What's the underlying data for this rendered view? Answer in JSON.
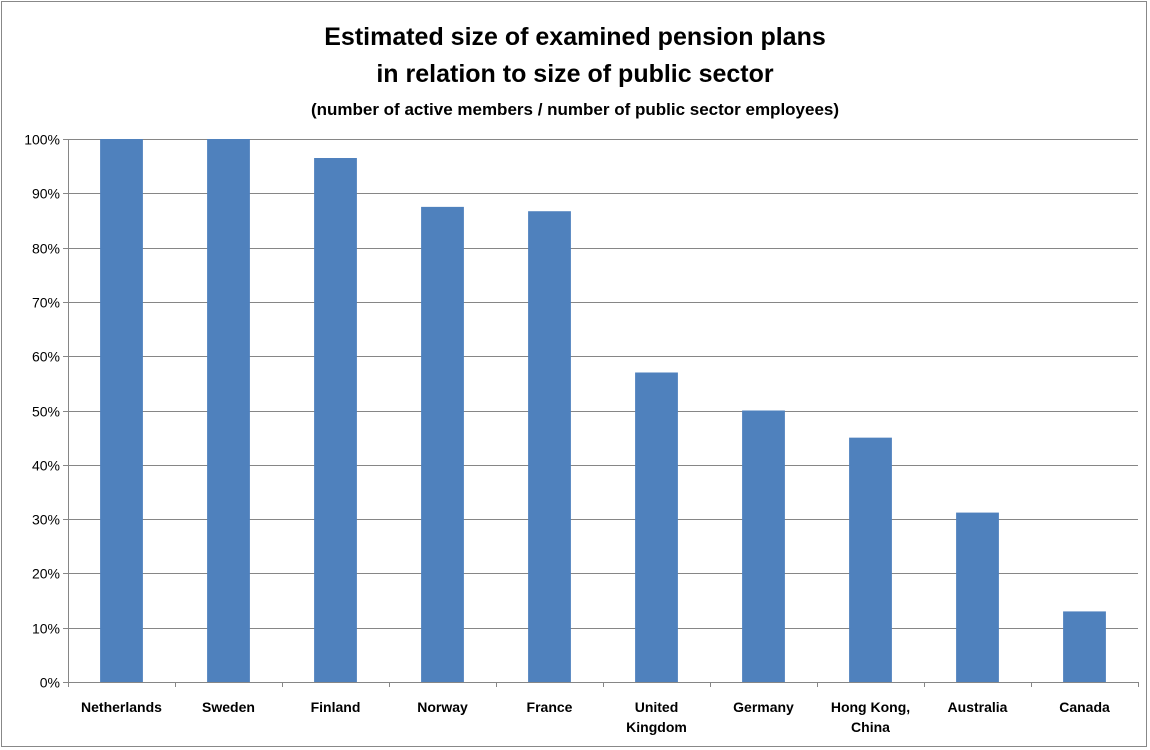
{
  "chart_data": {
    "type": "bar",
    "title_lines": [
      "Estimated size of examined pension plans",
      "in relation to size of public sector"
    ],
    "subtitle": "(number of active members / number of public sector employees)",
    "xlabel": "",
    "ylabel": "",
    "categories": [
      [
        "Netherlands"
      ],
      [
        "Sweden"
      ],
      [
        "Finland"
      ],
      [
        "Norway"
      ],
      [
        "France"
      ],
      [
        "United",
        "Kingdom"
      ],
      [
        "Germany"
      ],
      [
        "Hong Kong,",
        "China"
      ],
      [
        "Australia"
      ],
      [
        "Canada"
      ]
    ],
    "values": [
      100,
      100,
      96.5,
      87.5,
      86.7,
      57,
      50,
      45,
      31.2,
      13
    ],
    "ylim": [
      0,
      100
    ],
    "y_ticks": [
      "0%",
      "10%",
      "20%",
      "30%",
      "40%",
      "50%",
      "60%",
      "70%",
      "80%",
      "90%",
      "100%"
    ],
    "grid": true,
    "legend": "none",
    "bar_color": "#4f81bd",
    "grid_color": "#868686"
  }
}
